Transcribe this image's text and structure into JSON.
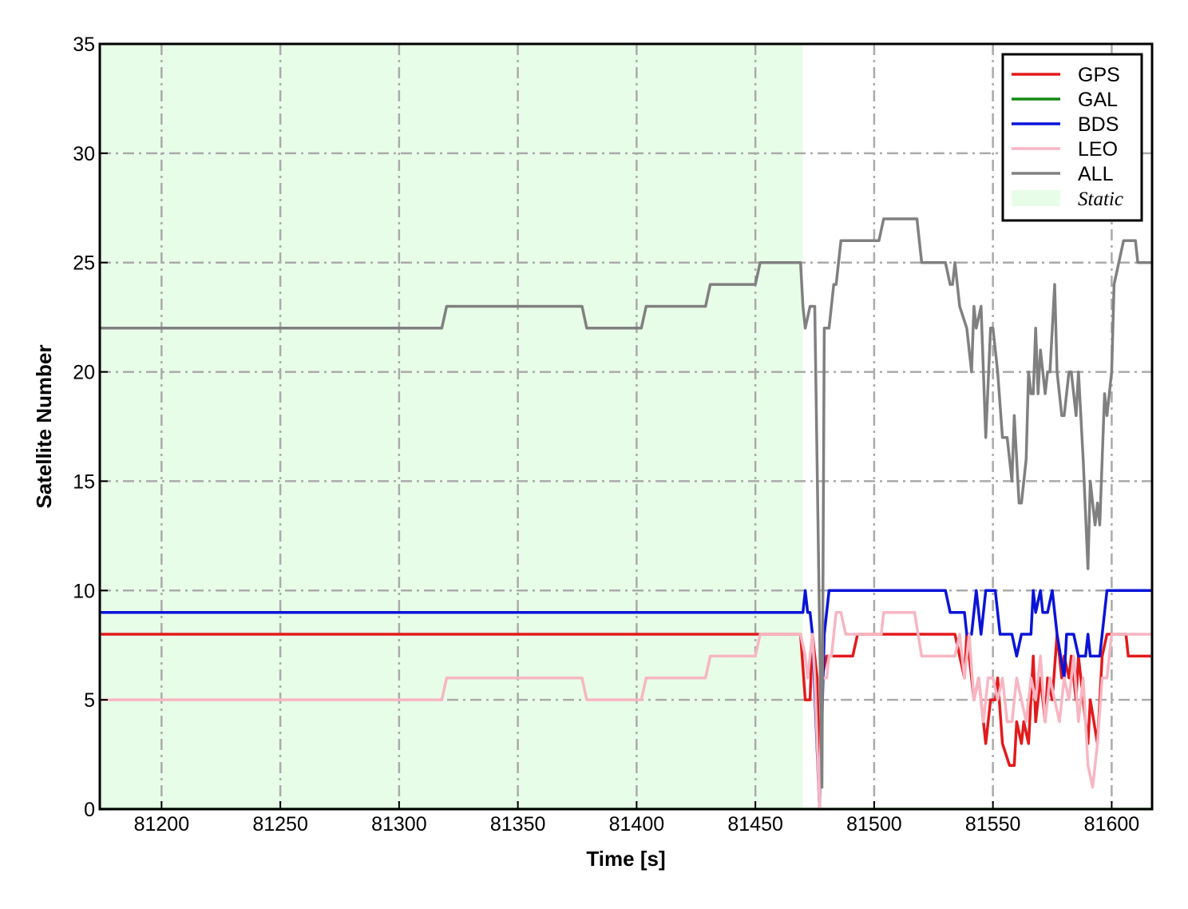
{
  "chart_data": {
    "type": "line",
    "xlabel": "Time [s]",
    "ylabel": "Satellite Number",
    "xlim": [
      81174,
      81617
    ],
    "ylim": [
      0,
      35
    ],
    "xticks": [
      81200,
      81250,
      81300,
      81350,
      81400,
      81450,
      81500,
      81550,
      81600
    ],
    "yticks": [
      0,
      5,
      10,
      15,
      20,
      25,
      30,
      35
    ],
    "grid": true,
    "legend": "upper right",
    "region": {
      "name": "Static",
      "color": "#e8fde8",
      "x": [
        81174,
        81470
      ]
    },
    "series": [
      {
        "name": "GPS",
        "color": "#e31a1c",
        "x": [
          81174,
          81469,
          81471,
          81473,
          81474,
          81476,
          81477,
          81478,
          81480,
          81491,
          81493,
          81534,
          81536,
          81538,
          81539,
          81542,
          81544,
          81547,
          81549,
          81551,
          81552,
          81554,
          81557,
          81559,
          81560,
          81562,
          81563,
          81565,
          81567,
          81568,
          81570,
          81572,
          81573,
          81575,
          81577,
          81579,
          81580,
          81582,
          81583,
          81585,
          81586,
          81590,
          81591,
          81594,
          81596,
          81598,
          81606,
          81607,
          81617
        ],
        "values": [
          8,
          8,
          5,
          5,
          8,
          6,
          1,
          6,
          7,
          7,
          8,
          8,
          7,
          6,
          8,
          5,
          6,
          3,
          5,
          5,
          6,
          3,
          2,
          2,
          4,
          3,
          4,
          3,
          7,
          4,
          6,
          4,
          6,
          5,
          8,
          6,
          7,
          6,
          7,
          5,
          7,
          3,
          5,
          3,
          7,
          8,
          8,
          7,
          7
        ]
      },
      {
        "name": "GAL",
        "color": "#138a13",
        "x": [
          81174,
          81617
        ],
        "values": [
          0,
          0
        ]
      },
      {
        "name": "BDS",
        "color": "#0a14d8",
        "x": [
          81174,
          81470,
          81471,
          81472,
          81473,
          81474,
          81477,
          81479,
          81481,
          81530,
          81532,
          81538,
          81539,
          81541,
          81543,
          81545,
          81547,
          81551,
          81553,
          81558,
          81560,
          81562,
          81566,
          81567,
          81568,
          81570,
          81571,
          81573,
          81575,
          81577,
          81580,
          81581,
          81584,
          81586,
          81589,
          81590,
          81591,
          81595,
          81598,
          81617
        ],
        "values": [
          9,
          9,
          10,
          9,
          9,
          8,
          0,
          8,
          10,
          10,
          9,
          9,
          8,
          8,
          10,
          8,
          10,
          10,
          8,
          8,
          7,
          8,
          8,
          10,
          9,
          10,
          9,
          9,
          10,
          8,
          6,
          8,
          8,
          7,
          7,
          8,
          7,
          7,
          10,
          10
        ]
      },
      {
        "name": "LEO",
        "color": "#f7b6c2",
        "x": [
          81174,
          81318,
          81320,
          81377,
          81379,
          81402,
          81404,
          81429,
          81431,
          81450,
          81452,
          81469,
          81471,
          81472,
          81474,
          81475,
          81477,
          81478,
          81480,
          81481,
          81482,
          81484,
          81486,
          81488,
          81503,
          81504,
          81517,
          81520,
          81530,
          81534,
          81536,
          81538,
          81540,
          81542,
          81544,
          81546,
          81548,
          81550,
          81552,
          81554,
          81556,
          81558,
          81560,
          81562,
          81564,
          81566,
          81568,
          81570,
          81572,
          81574,
          81576,
          81578,
          81580,
          81582,
          81584,
          81586,
          81588,
          81590,
          81592,
          81594,
          81596,
          81598,
          81600,
          81617
        ],
        "values": [
          5,
          5,
          6,
          6,
          5,
          5,
          6,
          6,
          7,
          7,
          8,
          8,
          7,
          6,
          8,
          6,
          0,
          6,
          6,
          7,
          7,
          9,
          9,
          8,
          8,
          9,
          9,
          7,
          7,
          7,
          8,
          6,
          8,
          5,
          6,
          4,
          6,
          6,
          5,
          6,
          4,
          4,
          6,
          5,
          4,
          6,
          5,
          7,
          4,
          6,
          5,
          4,
          6,
          5,
          7,
          4,
          6,
          2,
          1,
          3,
          6,
          6,
          8,
          8
        ]
      },
      {
        "name": "ALL",
        "color": "#808080",
        "x": [
          81174,
          81318,
          81320,
          81377,
          81379,
          81402,
          81404,
          81429,
          81431,
          81450,
          81452,
          81469,
          81470,
          81471,
          81473,
          81475,
          81478,
          81479,
          81481,
          81483,
          81484,
          81486,
          81502,
          81504,
          81518,
          81520,
          81530,
          81532,
          81533,
          81534,
          81536,
          81539,
          81541,
          81542,
          81543,
          81545,
          81547,
          81549,
          81550,
          81552,
          81554,
          81556,
          81558,
          81559,
          81561,
          81562,
          81564,
          81565,
          81566,
          81567,
          81568,
          81569,
          81570,
          81572,
          81573,
          81574,
          81576,
          81577,
          81579,
          81580,
          81582,
          81583,
          81585,
          81586,
          81588,
          81590,
          81591,
          81593,
          81594,
          81595,
          81597,
          81598,
          81600,
          81601,
          81605,
          81610,
          81611,
          81617
        ],
        "values": [
          22,
          22,
          23,
          23,
          22,
          22,
          23,
          23,
          24,
          24,
          25,
          25,
          23,
          22,
          23,
          23,
          1,
          22,
          22,
          24,
          24,
          26,
          26,
          27,
          27,
          25,
          25,
          24,
          24,
          25,
          23,
          22,
          20,
          23,
          22,
          23,
          17,
          22,
          22,
          20,
          17,
          17,
          15,
          18,
          14,
          14,
          16,
          20,
          19,
          19,
          22,
          19,
          21,
          19,
          20,
          20,
          24,
          20,
          18,
          18,
          20,
          20,
          18,
          20,
          16,
          11,
          15,
          13,
          14,
          13,
          19,
          18,
          20,
          24,
          26,
          26,
          25,
          25
        ]
      }
    ]
  }
}
